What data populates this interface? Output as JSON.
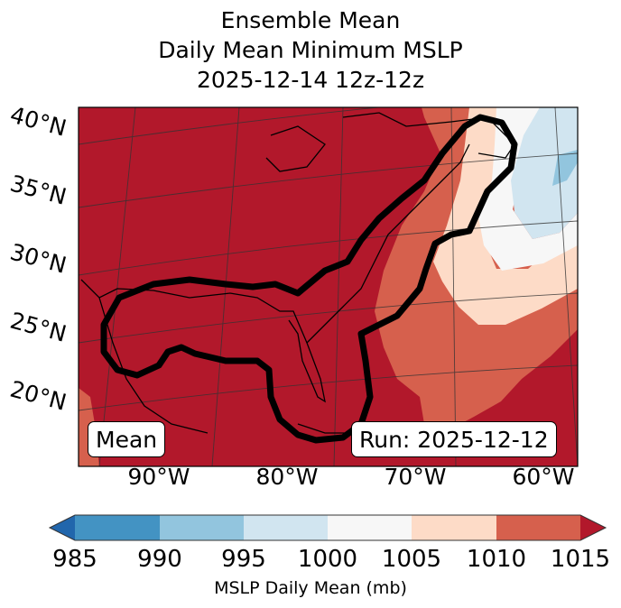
{
  "title": [
    "Ensemble Mean",
    "Daily Mean Minimum MSLP",
    "2025-12-14 12z-12z"
  ],
  "lat_labels": [
    "40°N",
    "35°N",
    "30°N",
    "25°N",
    "20°N"
  ],
  "lon_labels": [
    "90°W",
    "80°W",
    "70°W",
    "60°W"
  ],
  "mean_box": "Mean",
  "run_box": "Run: 2025-12-12",
  "colorbar": {
    "label": "MSLP Daily Mean (mb)",
    "ticks": [
      "985",
      "990",
      "995",
      "1000",
      "1005",
      "1010",
      "1015"
    ],
    "colors": [
      "#4393c3",
      "#92c5de",
      "#d1e5f0",
      "#f7f7f7",
      "#fddbc7",
      "#d6604d"
    ],
    "under": "#2166ac",
    "over": "#b2182b"
  },
  "chart_data": {
    "type": "heatmap",
    "title": "Ensemble Mean Daily Mean Minimum MSLP 2025-12-14 12z-12z",
    "levels": [
      985,
      990,
      995,
      1000,
      1005,
      1010,
      1015
    ],
    "units": "mb",
    "extent_lon": [
      -95,
      -58
    ],
    "extent_lat": [
      17,
      41
    ],
    "description_of_field": "Above 1015 mb over most of map; lower pressure (990-1005) off Nova Scotia / NW Atlantic",
    "contour": "thick black outline enclosing Gulf of Mexico, Florida and US East Coast"
  }
}
